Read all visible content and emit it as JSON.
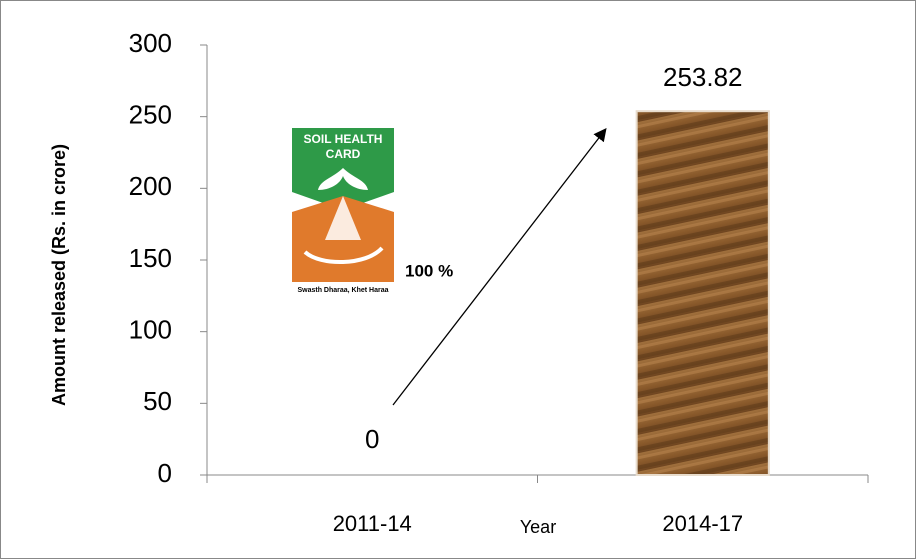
{
  "chart_data": {
    "type": "bar",
    "categories": [
      "2011-14",
      "2014-17"
    ],
    "values": [
      0,
      253.82
    ],
    "x_label": "Year",
    "y_label": "Amount released (Rs. in crore)",
    "ylim": [
      0,
      300
    ],
    "yticks": [
      0,
      50,
      100,
      150,
      200,
      250,
      300
    ],
    "color": "#8a5a2b",
    "annotation": "100 %",
    "logo_title": [
      "SOIL HEALTH",
      "CARD"
    ],
    "logo_tagline": "Swasth Dharaa, Khet Haraa"
  }
}
